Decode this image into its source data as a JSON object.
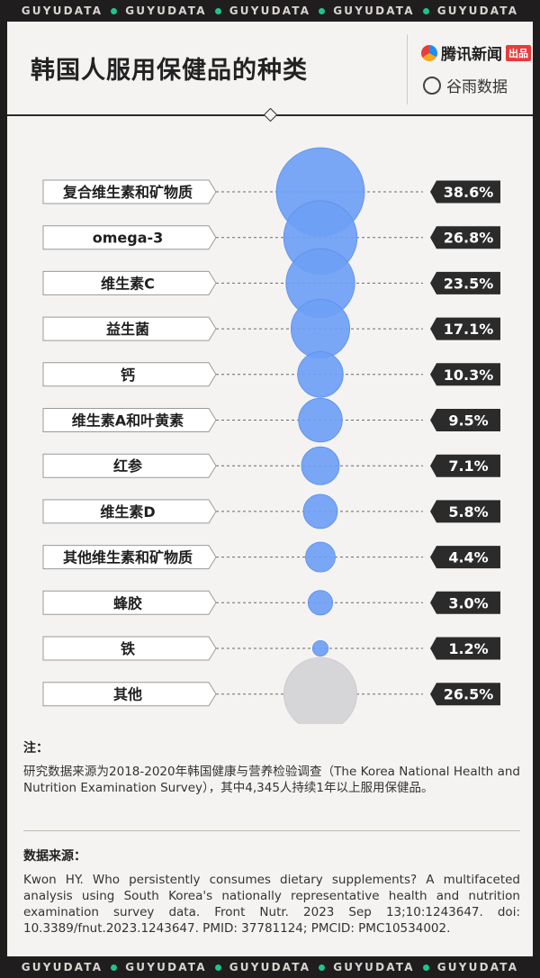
{
  "ticker": {
    "word": "GUYUDATA"
  },
  "header": {
    "title": "韩国人服用保健品的种类",
    "logo_primary": "腾讯新闻",
    "logo_primary_badge": "出品",
    "logo_secondary": "谷雨数据"
  },
  "chart_data": {
    "type": "bubble",
    "title": "韩国人服用保健品的种类",
    "categories": [
      "复合维生素和矿物质",
      "omega-3",
      "维生素C",
      "益生菌",
      "钙",
      "维生素A和叶黄素",
      "红参",
      "维生素D",
      "其他维生素和矿物质",
      "蜂胶",
      "铁",
      "其他"
    ],
    "values": [
      38.6,
      26.8,
      23.5,
      17.1,
      10.3,
      9.5,
      7.1,
      5.8,
      4.4,
      3.0,
      1.2,
      26.5
    ],
    "value_labels": [
      "38.6%",
      "26.8%",
      "23.5%",
      "17.1%",
      "10.3%",
      "9.5%",
      "7.1%",
      "5.8%",
      "4.4%",
      "3.0%",
      "1.2%",
      "26.5%"
    ],
    "unit": "%",
    "colors": {
      "bubble": "#6e9ff5",
      "bubble_other": "#d6d6d8",
      "label_box": "#2b2b2b",
      "label_text": "#ffffff"
    }
  },
  "notes": {
    "title": "注：",
    "text": "研究数据来源为2018-2020年韩国健康与营养检验调查（The Korea National Health and Nutrition Examination Survey），其中4,345人持续1年以上服用保健品。"
  },
  "source": {
    "title": "数据来源：",
    "text": "Kwon HY. Who persistently consumes dietary supplements? A multifaceted analysis using South Korea's nationally representative health and nutrition examination survey data. Front Nutr. 2023 Sep 13;10:1243647. doi: 10.3389/fnut.2023.1243647. PMID: 37781124; PMCID: PMC10534002."
  }
}
